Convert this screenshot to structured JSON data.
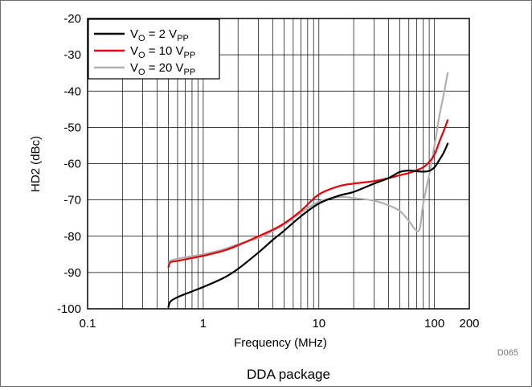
{
  "chart_data": {
    "type": "line",
    "xlabel": "Frequency (MHz)",
    "ylabel": "HD2 (dBc)",
    "caption": "DDA package",
    "figure_code": "D065",
    "x_scale": "log",
    "xlim": [
      0.1,
      200
    ],
    "ylim": [
      -100,
      -20
    ],
    "grid": true,
    "legend_position": "top-left",
    "x_ticks": [
      {
        "value": 0.1,
        "label": "0.1"
      },
      {
        "value": 1,
        "label": "1"
      },
      {
        "value": 10,
        "label": "10"
      },
      {
        "value": 100,
        "label": "100"
      },
      {
        "value": 200,
        "label": "200"
      }
    ],
    "y_ticks": [
      -20,
      -30,
      -40,
      -50,
      -60,
      -70,
      -80,
      -90,
      -100
    ],
    "series": [
      {
        "name": "V_O = 2 V_PP",
        "legend": {
          "main": "V",
          "sub1": "O",
          "mid": " = 2 V",
          "sub2": "PP"
        },
        "color": "#000000",
        "points": [
          [
            0.5,
            -99.5
          ],
          [
            0.52,
            -98.0
          ],
          [
            0.6,
            -96.8
          ],
          [
            0.8,
            -95.2
          ],
          [
            1,
            -94.0
          ],
          [
            1.5,
            -91.5
          ],
          [
            2,
            -89.0
          ],
          [
            3,
            -84.5
          ],
          [
            4,
            -81.0
          ],
          [
            5,
            -78.5
          ],
          [
            7,
            -74.5
          ],
          [
            10,
            -71.0
          ],
          [
            15,
            -68.8
          ],
          [
            20,
            -67.8
          ],
          [
            30,
            -65.5
          ],
          [
            40,
            -64.0
          ],
          [
            50,
            -62.3
          ],
          [
            60,
            -61.9
          ],
          [
            70,
            -62.1
          ],
          [
            80,
            -62.2
          ],
          [
            90,
            -62.0
          ],
          [
            100,
            -61.0
          ],
          [
            110,
            -59.0
          ],
          [
            120,
            -57.0
          ],
          [
            130,
            -54.5
          ]
        ]
      },
      {
        "name": "V_O = 10 V_PP",
        "legend": {
          "main": "V",
          "sub1": "O",
          "mid": " = 10 V",
          "sub2": "PP"
        },
        "color": "#e8000b",
        "points": [
          [
            0.5,
            -88.5
          ],
          [
            0.52,
            -87.2
          ],
          [
            0.6,
            -86.8
          ],
          [
            0.8,
            -86.0
          ],
          [
            1,
            -85.4
          ],
          [
            1.5,
            -84.0
          ],
          [
            2,
            -82.5
          ],
          [
            3,
            -80.0
          ],
          [
            4,
            -78.2
          ],
          [
            5,
            -76.5
          ],
          [
            7,
            -73.0
          ],
          [
            10,
            -68.5
          ],
          [
            15,
            -66.2
          ],
          [
            20,
            -65.5
          ],
          [
            30,
            -64.8
          ],
          [
            40,
            -64.0
          ],
          [
            50,
            -63.2
          ],
          [
            60,
            -62.6
          ],
          [
            70,
            -61.8
          ],
          [
            80,
            -61.0
          ],
          [
            90,
            -59.5
          ],
          [
            100,
            -57.5
          ],
          [
            110,
            -54.0
          ],
          [
            120,
            -51.0
          ],
          [
            130,
            -48.0
          ]
        ]
      },
      {
        "name": "V_O = 20 V_PP",
        "legend": {
          "main": "V",
          "sub1": "O",
          "mid": " = 20 V",
          "sub2": "PP"
        },
        "color": "#b0b0b0",
        "points": [
          [
            0.5,
            -87.5
          ],
          [
            0.52,
            -86.8
          ],
          [
            0.6,
            -86.2
          ],
          [
            0.8,
            -85.5
          ],
          [
            1,
            -85.0
          ],
          [
            1.5,
            -83.6
          ],
          [
            2,
            -82.2
          ],
          [
            3,
            -80.5
          ],
          [
            4,
            -78.5
          ],
          [
            5,
            -76.8
          ],
          [
            7,
            -73.5
          ],
          [
            10,
            -70.5
          ],
          [
            15,
            -69.2
          ],
          [
            20,
            -69.5
          ],
          [
            30,
            -70.2
          ],
          [
            40,
            -71.5
          ],
          [
            50,
            -73.0
          ],
          [
            60,
            -75.8
          ],
          [
            70,
            -78.5
          ],
          [
            75,
            -77.5
          ],
          [
            80,
            -71.0
          ],
          [
            90,
            -63.0
          ],
          [
            100,
            -55.0
          ],
          [
            110,
            -47.0
          ],
          [
            120,
            -41.0
          ],
          [
            130,
            -35.0
          ]
        ]
      }
    ]
  }
}
